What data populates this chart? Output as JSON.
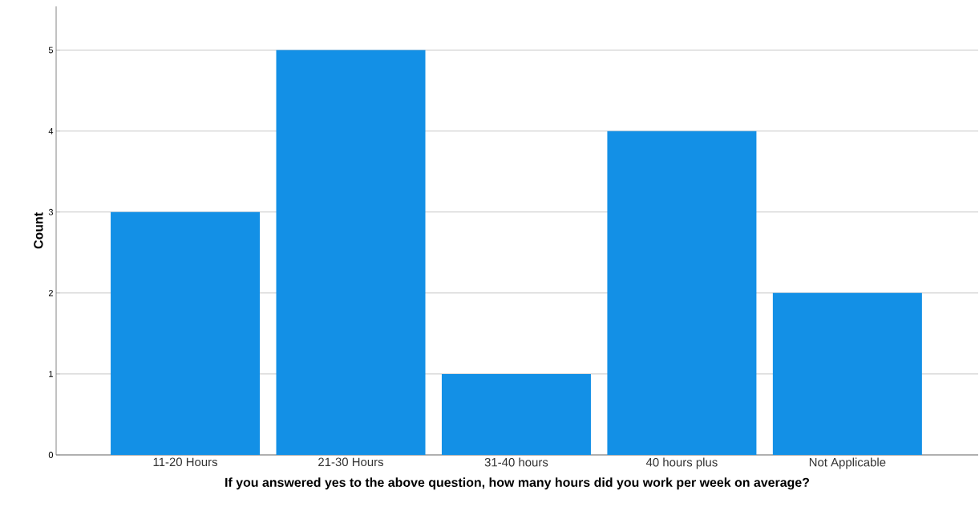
{
  "chart_data": {
    "type": "bar",
    "xlabel": "If you answered yes to the above question, how many hours did you work per week on average?",
    "ylabel": "Count",
    "categories": [
      "11-20 Hours",
      "21-30 Hours",
      "31-40 hours",
      "40 hours plus",
      "Not Applicable"
    ],
    "values": [
      3,
      5,
      1,
      4,
      2
    ],
    "color": "#1390e6",
    "ylim": [
      0,
      5.54
    ],
    "yticks": [
      0,
      1,
      2,
      3,
      4,
      5
    ],
    "grid": "y"
  }
}
